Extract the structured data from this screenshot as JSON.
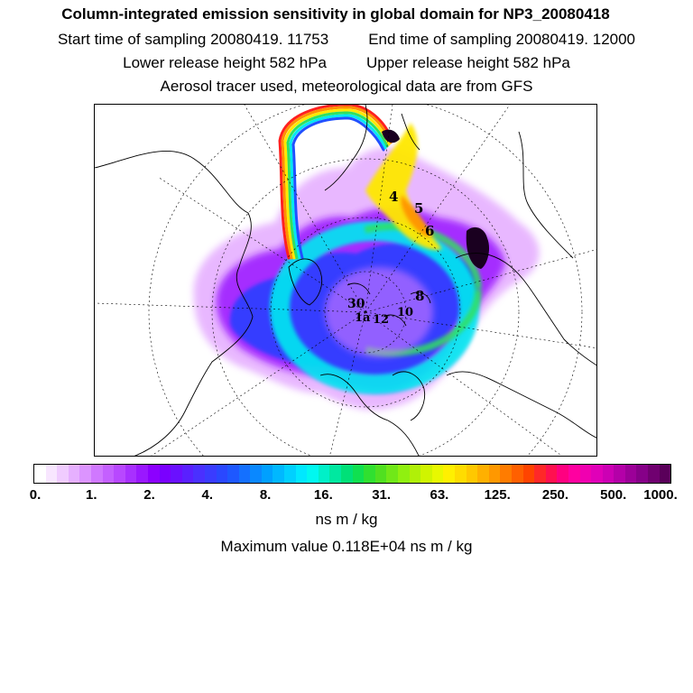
{
  "header": {
    "title": "Column-integrated emission sensitivity in global domain for NP3_20080418",
    "start_label": "Start time of sampling 20080419. 11753",
    "end_label": "End time of sampling 20080419. 12000",
    "lower_label": "Lower release height  582 hPa",
    "upper_label": "Upper release height  582 hPa",
    "tracer_line": "Aerosol tracer used, meteorological data are from GFS"
  },
  "map": {
    "projection": "north-polar-stereographic",
    "trajectory_labels": [
      "4",
      "5",
      "6",
      "8",
      "30",
      "1a",
      "12",
      "10"
    ],
    "colors": {
      "coast": "#000000",
      "grid": "#000000",
      "plume_light": "#e8a8f8",
      "plume_violet": "#a040ff",
      "plume_blue": "#2050ff",
      "plume_cyan": "#00e8f0",
      "plume_green": "#30e060",
      "plume_yellow": "#ffe800",
      "plume_orange": "#ff9000",
      "plume_red": "#ff2020"
    }
  },
  "colorbar": {
    "ticks": [
      "0.",
      "1.",
      "2.",
      "4.",
      "8.",
      "16.",
      "31.",
      "63.",
      "125.",
      "250.",
      "500.",
      "1000."
    ],
    "colors": [
      "#ffffff",
      "#f8e6ff",
      "#f0ccff",
      "#e6b0ff",
      "#dc94ff",
      "#d078ff",
      "#c460ff",
      "#b848ff",
      "#a830ff",
      "#9a18ff",
      "#8c00ff",
      "#7a00ff",
      "#6a10ff",
      "#5a20ff",
      "#4a30ff",
      "#3a3cff",
      "#2a48ff",
      "#1e58ff",
      "#1470ff",
      "#0a88ff",
      "#00a0ff",
      "#00b8ff",
      "#00d0ff",
      "#00e8ff",
      "#00f8f0",
      "#00f0c8",
      "#00e8a0",
      "#00e078",
      "#10e050",
      "#30e030",
      "#50e020",
      "#70e818",
      "#90f010",
      "#b0f008",
      "#d0f400",
      "#e8f800",
      "#fff000",
      "#ffdc00",
      "#ffc800",
      "#ffb000",
      "#ff9800",
      "#ff7c00",
      "#ff6000",
      "#ff4400",
      "#ff2828",
      "#ff1050",
      "#ff0080",
      "#ff00a0",
      "#f000b0",
      "#e000b8",
      "#cc00b4",
      "#b400a8",
      "#9c0098",
      "#860088",
      "#700070",
      "#5a005a"
    ],
    "unit": "ns m / kg"
  },
  "footer": {
    "max_value": "Maximum value  0.118E+04 ns m / kg"
  }
}
